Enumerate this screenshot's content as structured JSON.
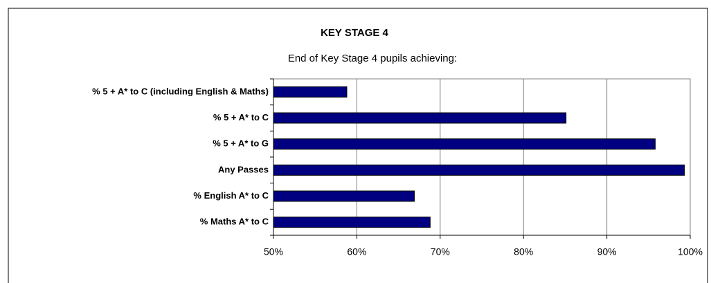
{
  "chart_data": {
    "type": "hbar",
    "title": "KEY STAGE 4",
    "subtitle": "End of Key Stage 4 pupils achieving:",
    "categories": [
      "% 5 + A* to C (including English & Maths)",
      "% 5 + A* to C",
      "% 5 + A* to G",
      "Any Passes",
      "% English A* to C",
      "% Maths A* to C"
    ],
    "values": [
      58.8,
      85.1,
      95.8,
      99.3,
      66.9,
      68.8
    ],
    "color": "#000080",
    "xlim": [
      50,
      100
    ],
    "xticks": [
      {
        "value": 50,
        "label": "50%"
      },
      {
        "value": 60,
        "label": "60%"
      },
      {
        "value": 70,
        "label": "70%"
      },
      {
        "value": 80,
        "label": "80%"
      },
      {
        "value": 90,
        "label": "90%"
      },
      {
        "value": 100,
        "label": "100%"
      }
    ],
    "grid": true
  }
}
